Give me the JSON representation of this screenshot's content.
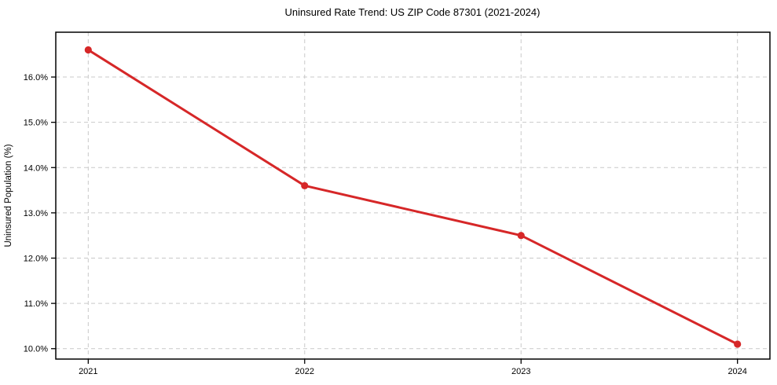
{
  "chart_data": {
    "type": "line",
    "title": "Uninsured Rate Trend: US ZIP Code 87301 (2021-2024)",
    "xlabel": "",
    "ylabel": "Uninsured Population (%)",
    "x": [
      2021,
      2022,
      2023,
      2024
    ],
    "values": [
      16.6,
      13.6,
      12.5,
      10.1
    ],
    "xticks": [
      2021,
      2022,
      2023,
      2024
    ],
    "xtick_labels": [
      "2021",
      "2022",
      "2023",
      "2024"
    ],
    "yticks": [
      10,
      11,
      12,
      13,
      14,
      15,
      16
    ],
    "ytick_labels": [
      "10.0%",
      "11.0%",
      "12.0%",
      "13.0%",
      "14.0%",
      "15.0%",
      "16.0%"
    ],
    "xlim": [
      2020.85,
      2024.15
    ],
    "ylim": [
      9.77,
      16.99
    ],
    "grid": true,
    "grid_style": "dashed",
    "legend": false,
    "line_color": "#d62728",
    "marker_color": "#d62728",
    "grid_color": "#c9c9c9",
    "spine_color": "#000000",
    "background_color": "#ffffff"
  }
}
